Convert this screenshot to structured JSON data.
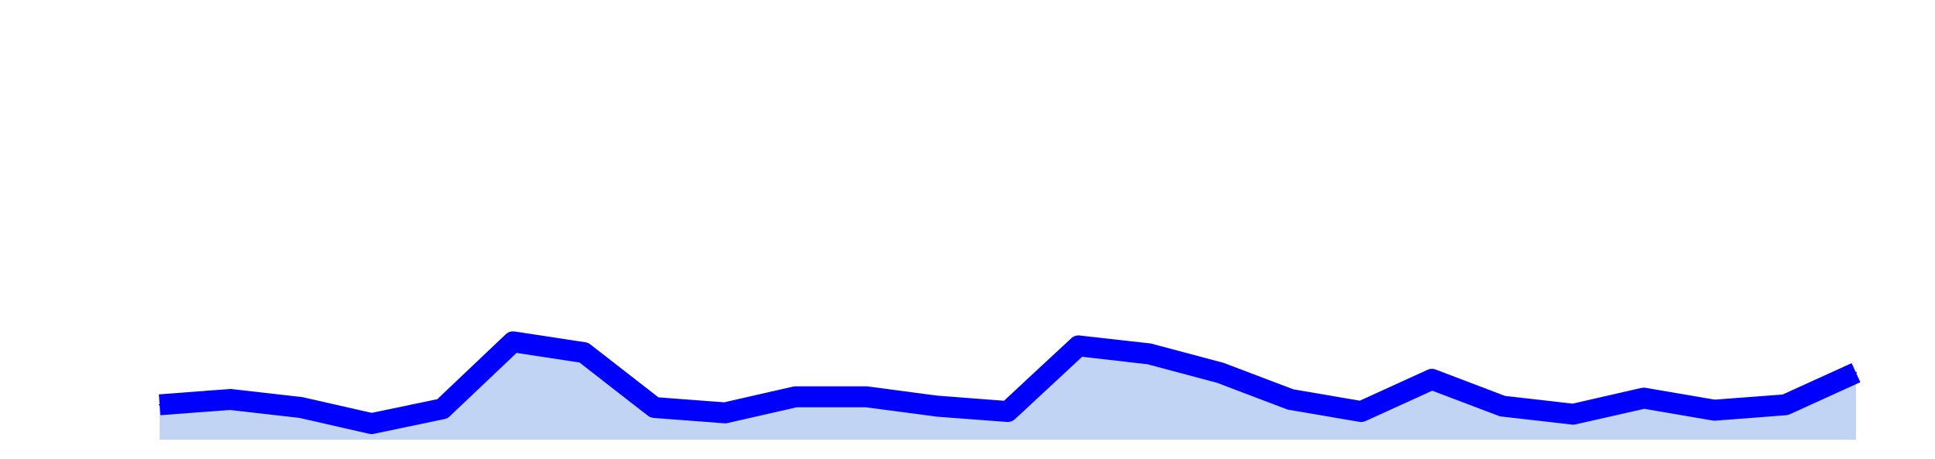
{
  "chart_data": {
    "type": "area",
    "title": "",
    "xlabel": "",
    "ylabel": "",
    "x": [
      1,
      2,
      3,
      4,
      5,
      6,
      7,
      8,
      9,
      10,
      11,
      12,
      13,
      14,
      15,
      16,
      17,
      18,
      19,
      20,
      21,
      22,
      23,
      24,
      25
    ],
    "series": [
      {
        "values": [
          0.8,
          1.2,
          0.6,
          -0.6,
          0.5,
          5.5,
          4.7,
          0.6,
          0.2,
          1.4,
          1.4,
          0.7,
          0.3,
          5.2,
          4.6,
          3.2,
          1.2,
          0.3,
          2.7,
          0.7,
          0.1,
          1.3,
          0.4,
          0.8,
          3.2
        ]
      }
    ],
    "ylim": [
      -1.8,
      31
    ],
    "grid": false,
    "legend": false,
    "colors": {
      "line": "#0000ff",
      "fill": "#c2d4f4",
      "background": "#ffffff"
    }
  }
}
